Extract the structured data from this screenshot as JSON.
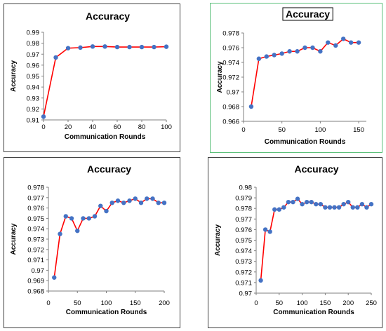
{
  "chart_data": [
    {
      "type": "line",
      "title": "Accuracy",
      "title_boxed": false,
      "xlabel": "Communication Rounds",
      "ylabel": "Accuracy",
      "xlim": [
        0,
        100
      ],
      "xticks": [
        0,
        20,
        40,
        60,
        80,
        100
      ],
      "ylim": [
        0.91,
        0.99
      ],
      "yticks": [
        0.91,
        0.92,
        0.93,
        0.94,
        0.95,
        0.96,
        0.97,
        0.98,
        0.99
      ],
      "grid": false,
      "line_color": "#ff0000",
      "marker_color": "#4472c4",
      "series": [
        {
          "x": [
            0,
            10,
            20,
            30,
            40,
            50,
            60,
            70,
            80,
            90,
            100
          ],
          "values": [
            0.913,
            0.967,
            0.9755,
            0.976,
            0.977,
            0.977,
            0.9765,
            0.9765,
            0.9765,
            0.9765,
            0.9768
          ]
        }
      ]
    },
    {
      "type": "line",
      "title": "Accuracy",
      "title_boxed": true,
      "xlabel": "Communication Rounds",
      "ylabel": "Accuracy",
      "xlim": [
        0,
        160
      ],
      "xticks": [
        0,
        50,
        100,
        150
      ],
      "ylim": [
        0.966,
        0.978
      ],
      "yticks": [
        0.966,
        0.968,
        0.97,
        0.972,
        0.974,
        0.976,
        0.978
      ],
      "grid": false,
      "line_color": "#ff0000",
      "marker_color": "#4472c4",
      "series": [
        {
          "x": [
            10,
            20,
            30,
            40,
            50,
            60,
            70,
            80,
            90,
            100,
            110,
            120,
            130,
            140,
            150
          ],
          "values": [
            0.968,
            0.9745,
            0.9748,
            0.975,
            0.9752,
            0.9755,
            0.9755,
            0.976,
            0.976,
            0.9755,
            0.9767,
            0.9763,
            0.9772,
            0.9767,
            0.9767
          ]
        }
      ]
    },
    {
      "type": "line",
      "title": "Accuracy",
      "title_boxed": false,
      "xlabel": "Communication Rounds",
      "ylabel": "Accuracy",
      "xlim": [
        0,
        200
      ],
      "xticks": [
        0,
        50,
        100,
        150,
        200
      ],
      "ylim": [
        0.968,
        0.978
      ],
      "yticks": [
        0.968,
        0.969,
        0.97,
        0.971,
        0.972,
        0.973,
        0.974,
        0.975,
        0.976,
        0.977,
        0.978
      ],
      "grid": false,
      "line_color": "#ff0000",
      "marker_color": "#4472c4",
      "series": [
        {
          "x": [
            10,
            20,
            30,
            40,
            50,
            60,
            70,
            80,
            90,
            100,
            110,
            120,
            130,
            140,
            150,
            160,
            170,
            180,
            190,
            200
          ],
          "values": [
            0.9693,
            0.9735,
            0.9752,
            0.975,
            0.9738,
            0.975,
            0.975,
            0.9752,
            0.9762,
            0.9757,
            0.9765,
            0.9767,
            0.9765,
            0.9767,
            0.9769,
            0.9765,
            0.9769,
            0.9769,
            0.9765,
            0.9765
          ]
        }
      ]
    },
    {
      "type": "line",
      "title": "Accuracy",
      "title_boxed": false,
      "xlabel": "Communication Rounds",
      "ylabel": "Accuracy",
      "xlim": [
        0,
        250
      ],
      "xticks": [
        0,
        50,
        100,
        150,
        200,
        250
      ],
      "ylim": [
        0.97,
        0.98
      ],
      "yticks": [
        0.97,
        0.971,
        0.972,
        0.973,
        0.974,
        0.975,
        0.976,
        0.977,
        0.978,
        0.979,
        0.98
      ],
      "grid": false,
      "line_color": "#ff0000",
      "marker_color": "#4472c4",
      "series": [
        {
          "x": [
            10,
            20,
            30,
            40,
            50,
            60,
            70,
            80,
            90,
            100,
            110,
            120,
            130,
            140,
            150,
            160,
            170,
            180,
            190,
            200,
            210,
            220,
            230,
            240,
            250
          ],
          "values": [
            0.9712,
            0.976,
            0.9758,
            0.9779,
            0.9779,
            0.9781,
            0.9786,
            0.9786,
            0.9789,
            0.9784,
            0.9786,
            0.9786,
            0.9784,
            0.9784,
            0.9781,
            0.9781,
            0.9781,
            0.9781,
            0.9784,
            0.9786,
            0.9781,
            0.9781,
            0.9784,
            0.9781,
            0.9784
          ]
        }
      ]
    }
  ]
}
